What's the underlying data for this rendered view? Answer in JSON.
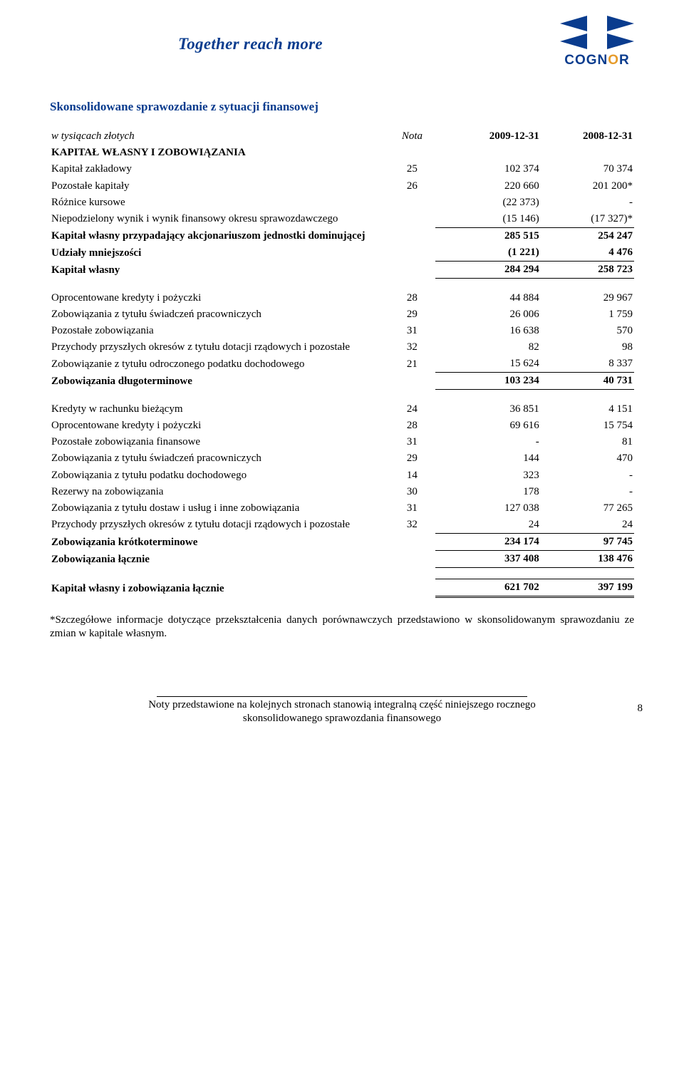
{
  "banner": {
    "tagline": "Together reach more",
    "logo_text_a": "COGN",
    "logo_text_b": "O",
    "logo_text_c": "R"
  },
  "title": "Skonsolidowane sprawozdanie z sytuacji finansowej",
  "columns": {
    "units_label": "w tysiącach złotych",
    "nota_label": "Nota",
    "period_a": "2009-12-31",
    "period_b": "2008-12-31"
  },
  "block1": {
    "heading": "KAPITAŁ WŁASNY I ZOBOWIĄZANIA",
    "rows": [
      {
        "label": "Kapitał zakładowy",
        "nota": "25",
        "a": "102 374",
        "b": "70 374"
      },
      {
        "label": "Pozostałe kapitały",
        "nota": "26",
        "a": "220 660",
        "b": "201 200*"
      },
      {
        "label": "Różnice kursowe",
        "nota": "",
        "a": "(22 373)",
        "b": "-"
      },
      {
        "label": "Niepodzielony wynik i wynik finansowy okresu sprawozdawczego",
        "indent": true,
        "nota": "",
        "a": "(15 146)",
        "b": "(17 327)*"
      }
    ],
    "sub1": {
      "label": "Kapitał własny przypadający akcjonariuszom jednostki dominującej",
      "indent": true,
      "a": "285 515",
      "b": "254 247"
    },
    "sub2": {
      "label": "Udziały mniejszości",
      "a": "(1 221)",
      "b": "4 476"
    },
    "total": {
      "label": "Kapitał własny",
      "a": "284 294",
      "b": "258 723"
    }
  },
  "block2": {
    "rows": [
      {
        "label": "Oprocentowane kredyty i pożyczki",
        "nota": "28",
        "a": "44 884",
        "b": "29 967"
      },
      {
        "label": "Zobowiązania z tytułu świadczeń pracowniczych",
        "nota": "29",
        "a": "26 006",
        "b": "1 759"
      },
      {
        "label": "Pozostałe zobowiązania",
        "nota": "31",
        "a": "16 638",
        "b": "570"
      },
      {
        "label": "Przychody przyszłych okresów z tytułu dotacji rządowych i pozostałe",
        "indent": true,
        "nota": "32",
        "a": "82",
        "b": "98"
      },
      {
        "label": "Zobowiązanie z tytułu odroczonego podatku dochodowego",
        "nota": "21",
        "a": "15 624",
        "b": "8 337"
      }
    ],
    "total": {
      "label": "Zobowiązania długoterminowe",
      "a": "103 234",
      "b": "40 731"
    }
  },
  "block3": {
    "rows": [
      {
        "label": "Kredyty w rachunku bieżącym",
        "nota": "24",
        "a": "36 851",
        "b": "4 151"
      },
      {
        "label": "Oprocentowane kredyty i pożyczki",
        "nota": "28",
        "a": "69 616",
        "b": "15 754"
      },
      {
        "label": "Pozostałe zobowiązania finansowe",
        "nota": "31",
        "a": "-",
        "b": "81"
      },
      {
        "label": "Zobowiązania z tytułu świadczeń pracowniczych",
        "nota": "29",
        "a": "144",
        "b": "470"
      },
      {
        "label": "Zobowiązania z tytułu podatku dochodowego",
        "nota": "14",
        "a": "323",
        "b": "-"
      },
      {
        "label": "Rezerwy na zobowiązania",
        "nota": "30",
        "a": "178",
        "b": "-"
      },
      {
        "label": "Zobowiązania z tytułu dostaw i usług i inne zobowiązania",
        "nota": "31",
        "a": "127 038",
        "b": "77 265"
      },
      {
        "label": "Przychody przyszłych okresów z tytułu dotacji rządowych i pozostałe",
        "indent": true,
        "nota": "32",
        "a": "24",
        "b": "24"
      }
    ],
    "total1": {
      "label": "Zobowiązania krótkoterminowe",
      "a": "234 174",
      "b": "97 745"
    },
    "total2": {
      "label": "Zobowiązania łącznie",
      "a": "337 408",
      "b": "138 476"
    }
  },
  "grand": {
    "label": "Kapitał własny i zobowiązania łącznie",
    "a": "621 702",
    "b": "397 199"
  },
  "footnote": "*Szczegółowe informacje dotyczące przekształcenia danych porównawczych przedstawiono w skonsolidowanym sprawozdaniu ze zmian w kapitale własnym.",
  "footer": {
    "line1": "Noty przedstawione na kolejnych stronach stanowią integralną część niniejszego rocznego",
    "line2": "skonsolidowanego sprawozdania finansowego",
    "page": "8"
  }
}
